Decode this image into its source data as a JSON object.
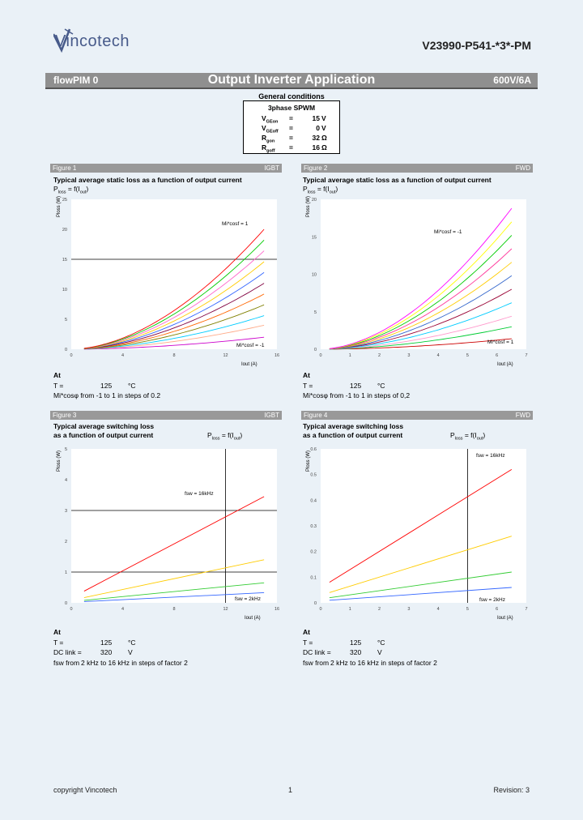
{
  "header": {
    "logo_text": "Vincotech",
    "doc_id": "V23990-P541-*3*-PM",
    "bar_left": "flowPIM 0",
    "bar_title": "Output Inverter Application",
    "bar_right": "600V/6A"
  },
  "general_conditions": {
    "title": "General conditions",
    "heading": "3phase SPWM",
    "rows": [
      {
        "sym": "V",
        "sub": "GEon",
        "eq": "=",
        "val": "15",
        "unit": "V"
      },
      {
        "sym": "V",
        "sub": "GEoff",
        "eq": "=",
        "val": "0",
        "unit": "V"
      },
      {
        "sym": "R",
        "sub": "gon",
        "eq": "=",
        "val": "32",
        "unit": "Ω"
      },
      {
        "sym": "R",
        "sub": "goff",
        "eq": "=",
        "val": "16",
        "unit": "Ω"
      }
    ]
  },
  "figures": [
    {
      "label": "Figure 1",
      "tag": "IGBT",
      "title": [
        "Typical average static loss as a function of output current",
        ""
      ],
      "eq_main": "P",
      "eq_sub": "loss",
      "eq_rest": " = f(I",
      "eq_sub2": "out",
      "eq_end": ")",
      "ylabel": "Ploss (W)",
      "xlabel": "Iout (A)",
      "annot_top": "Mi*cosf = 1",
      "annot_bottom": "Mi*cosf = -1",
      "cond": {
        "at": "At",
        "t_lbl": "T =",
        "t_val": "125",
        "t_unit": "°C",
        "note": "Mi*cosφ from -1 to 1 in steps of 0.2"
      }
    },
    {
      "label": "Figure 2",
      "tag": "FWD",
      "title": [
        "Typical average static loss as a function of output current",
        ""
      ],
      "eq_main": "P",
      "eq_sub": "loss",
      "eq_rest": " = f(I",
      "eq_sub2": "out",
      "eq_end": ")",
      "ylabel": "Ploss (W)",
      "xlabel": "Iout (A)",
      "annot_top": "Mi*cosf = -1",
      "annot_bottom": "Mi*cosf = 1",
      "cond": {
        "at": "At",
        "t_lbl": "T =",
        "t_val": "125",
        "t_unit": "°C",
        "note": "Mi*cosφ from -1 to 1 in steps of 0,2"
      }
    },
    {
      "label": "Figure 3",
      "tag": "IGBT",
      "title": [
        "Typical average switching loss",
        "as a function of output current"
      ],
      "eq_main": "P",
      "eq_sub": "loss",
      "eq_rest": " = f(I",
      "eq_sub2": "out",
      "eq_end": ")",
      "ylabel": "Ploss (W)",
      "xlabel": "Iout (A)",
      "annot_top": "fsw = 16kHz",
      "annot_bottom": "fsw = 2kHz",
      "cond": {
        "at": "At",
        "t_lbl": "T =",
        "t_val": "125",
        "t_unit": "°C",
        "dc_lbl": "DC link =",
        "dc_val": "320",
        "dc_unit": "V",
        "f_lbl": "fsw from",
        "f_note": "2 kHz to 16 kHz in steps of factor 2"
      }
    },
    {
      "label": "Figure 4",
      "tag": "FWD",
      "title": [
        "Typical average switching loss",
        "as a function of output current"
      ],
      "eq_main": "P",
      "eq_sub": "loss",
      "eq_rest": " = f(I",
      "eq_sub2": "out",
      "eq_end": ")",
      "ylabel": "Ploss (W)",
      "xlabel": "Iout (A)",
      "annot_top": "fsw = 16kHz",
      "annot_bottom": "fsw = 2kHz",
      "cond": {
        "at": "At",
        "t_lbl": "T =",
        "t_val": "125",
        "t_unit": "°C",
        "dc_lbl": "DC link =",
        "dc_val": "320",
        "dc_unit": "V",
        "f_lbl": "fsw from",
        "f_note": "2 kHz to 16 kHz in steps of factor 2"
      }
    }
  ],
  "chart_data": [
    {
      "type": "line",
      "xlim": [
        0,
        16
      ],
      "ylim": [
        0,
        25
      ],
      "xticks": [
        "0",
        "4",
        "8",
        "12",
        "16"
      ],
      "yticks": [
        "0",
        "5",
        "10",
        "15",
        "20",
        "25"
      ],
      "ref_lines": {
        "h": 15
      },
      "x_start": 1,
      "series": [
        {
          "color": "#ff0000",
          "x_end": 15,
          "y_end": 20.0,
          "p": 1.8
        },
        {
          "color": "#00cc00",
          "x_end": 15,
          "y_end": 18.2,
          "p": 1.8
        },
        {
          "color": "#ff66cc",
          "x_end": 15,
          "y_end": 16.4,
          "p": 1.8
        },
        {
          "color": "#ffcc00",
          "x_end": 15,
          "y_end": 14.6,
          "p": 1.8
        },
        {
          "color": "#3366ff",
          "x_end": 15,
          "y_end": 12.8,
          "p": 1.8
        },
        {
          "color": "#800040",
          "x_end": 15,
          "y_end": 11.0,
          "p": 1.8
        },
        {
          "color": "#ff6600",
          "x_end": 15,
          "y_end": 9.2,
          "p": 1.8
        },
        {
          "color": "#808000",
          "x_end": 15,
          "y_end": 7.4,
          "p": 1.8
        },
        {
          "color": "#00ccff",
          "x_end": 15,
          "y_end": 5.6,
          "p": 1.8
        },
        {
          "color": "#ffaa88",
          "x_end": 15,
          "y_end": 4.0,
          "p": 1.8
        },
        {
          "color": "#cc00cc",
          "x_end": 15,
          "y_end": 2.0,
          "p": 1.8
        }
      ]
    },
    {
      "type": "line",
      "xlim": [
        0,
        7
      ],
      "ylim": [
        0,
        20
      ],
      "xticks": [
        "0",
        "1",
        "2",
        "3",
        "4",
        "5",
        "6",
        "7"
      ],
      "yticks": [
        "0",
        "5",
        "10",
        "15",
        "20"
      ],
      "x_start": 0.3,
      "series": [
        {
          "color": "#ff00ff",
          "x_end": 6.5,
          "y_end": 18.8,
          "p": 1.8
        },
        {
          "color": "#ffff00",
          "x_end": 6.5,
          "y_end": 17.0,
          "p": 1.8
        },
        {
          "color": "#00cc00",
          "x_end": 6.5,
          "y_end": 15.2,
          "p": 1.8
        },
        {
          "color": "#ff3399",
          "x_end": 6.5,
          "y_end": 13.4,
          "p": 1.8
        },
        {
          "color": "#ffcc00",
          "x_end": 6.5,
          "y_end": 11.6,
          "p": 1.8
        },
        {
          "color": "#3366cc",
          "x_end": 6.5,
          "y_end": 9.8,
          "p": 1.8
        },
        {
          "color": "#990033",
          "x_end": 6.5,
          "y_end": 8.0,
          "p": 1.8
        },
        {
          "color": "#00ccff",
          "x_end": 6.5,
          "y_end": 6.2,
          "p": 1.8
        },
        {
          "color": "#ff99cc",
          "x_end": 6.5,
          "y_end": 4.4,
          "p": 1.8
        },
        {
          "color": "#00cc33",
          "x_end": 6.5,
          "y_end": 3.0,
          "p": 1.8
        },
        {
          "color": "#cc0000",
          "x_end": 6.5,
          "y_end": 1.4,
          "p": 1.8
        }
      ]
    },
    {
      "type": "line",
      "xlim": [
        0,
        16
      ],
      "ylim": [
        0,
        5
      ],
      "xticks": [
        "0",
        "4",
        "8",
        "12",
        "16"
      ],
      "yticks": [
        "0",
        "1",
        "2",
        "3",
        "4",
        "5"
      ],
      "ref_lines": {
        "h": [
          3,
          1
        ],
        "v": 12
      },
      "series": [
        {
          "color": "#ff0000",
          "x0": 1,
          "y0": 0.38,
          "x1": 15,
          "y1": 3.45
        },
        {
          "color": "#ffcc00",
          "x0": 1,
          "y0": 0.17,
          "x1": 15,
          "y1": 1.4
        },
        {
          "color": "#33cc33",
          "x0": 1,
          "y0": 0.08,
          "x1": 15,
          "y1": 0.65
        },
        {
          "color": "#3366ff",
          "x0": 1,
          "y0": 0.04,
          "x1": 15,
          "y1": 0.33
        }
      ]
    },
    {
      "type": "line",
      "xlim": [
        0,
        7
      ],
      "ylim": [
        0,
        0.6
      ],
      "xticks": [
        "0",
        "1",
        "2",
        "3",
        "4",
        "5",
        "6",
        "7"
      ],
      "yticks": [
        "0",
        "0.1",
        "0.2",
        "0.3",
        "0.4",
        "0.5",
        "0.6"
      ],
      "ref_lines": {
        "v": 5
      },
      "series": [
        {
          "color": "#ff0000",
          "x0": 0.3,
          "y0": 0.08,
          "x1": 6.5,
          "y1": 0.52
        },
        {
          "color": "#ffcc00",
          "x0": 0.3,
          "y0": 0.04,
          "x1": 6.5,
          "y1": 0.26
        },
        {
          "color": "#33cc33",
          "x0": 0.3,
          "y0": 0.02,
          "x1": 6.5,
          "y1": 0.12
        },
        {
          "color": "#3366ff",
          "x0": 0.3,
          "y0": 0.01,
          "x1": 6.5,
          "y1": 0.06
        }
      ]
    }
  ],
  "footer": {
    "left": "copyright Vincotech",
    "center": "1",
    "right": "Revision: 3"
  }
}
